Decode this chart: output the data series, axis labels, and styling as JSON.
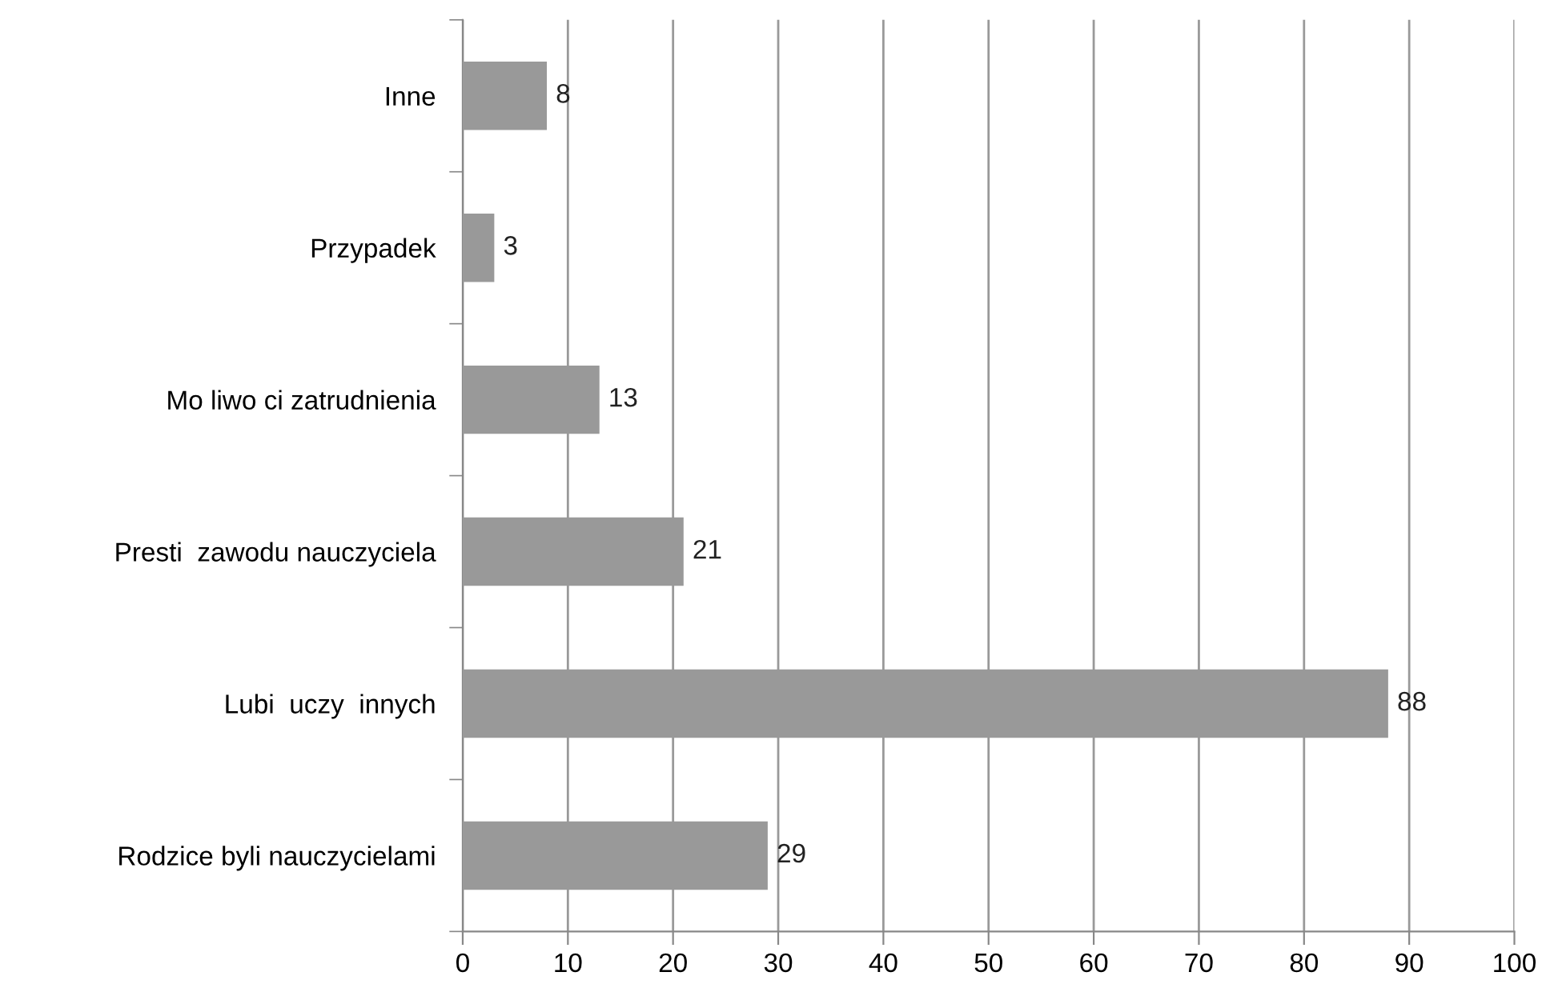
{
  "chart_data": {
    "type": "bar",
    "orientation": "horizontal",
    "categories": [
      "Inne",
      "Przypadek",
      "Mo liwo ci zatrudnienia",
      "Presti  zawodu nauczyciela",
      "Lubi  uczy  innych",
      "Rodzice byli nauczycielami"
    ],
    "values": [
      8,
      3,
      13,
      21,
      88,
      29
    ],
    "color": "#999999",
    "xlim": [
      0,
      100
    ],
    "xticks": [
      0,
      10,
      20,
      30,
      40,
      50,
      60,
      70,
      80,
      90,
      100
    ],
    "grid": "x",
    "data_labels": true
  }
}
